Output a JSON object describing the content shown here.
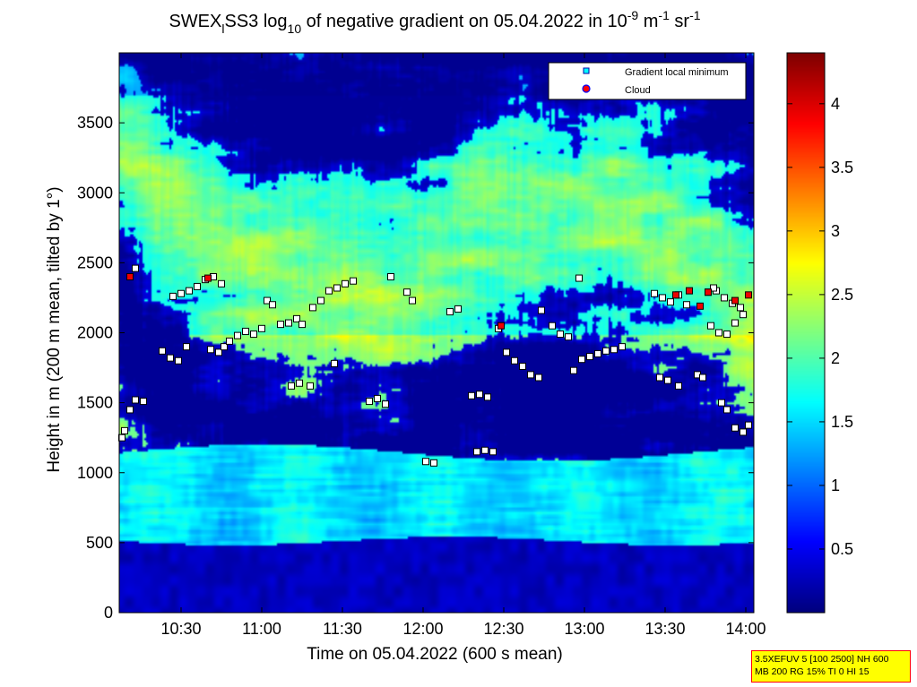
{
  "chart_data": {
    "type": "heatmap",
    "title_parts": {
      "a": "SWEX",
      "a_sub": "l",
      "b": "SS3 log",
      "b_sub": "10",
      "c": " of negative gradient on 05.04.2022 in 10",
      "c_sup": "-9",
      "d": " m",
      "d_sup": "-1",
      "e": " sr",
      "e_sup": "-1"
    },
    "xlabel": "Time on 05.04.2022 (600 s mean)",
    "ylabel": "Height in m (200 m mean, tilted by 1°)",
    "x_ticks": [
      "10:30",
      "11:00",
      "11:30",
      "12:00",
      "12:30",
      "13:00",
      "13:30",
      "14:00"
    ],
    "x_tick_minutes": [
      630,
      660,
      690,
      720,
      750,
      780,
      810,
      840
    ],
    "xlim_minutes": [
      607,
      843
    ],
    "y_ticks": [
      "0",
      "500",
      "1000",
      "1500",
      "2000",
      "2500",
      "3000",
      "3500"
    ],
    "y_tick_values": [
      0,
      500,
      1000,
      1500,
      2000,
      2500,
      3000,
      3500
    ],
    "ylim": [
      0,
      4000
    ],
    "colorbar": {
      "ticks": [
        "0.5",
        "1",
        "1.5",
        "2",
        "2.5",
        "3",
        "3.5",
        "4"
      ],
      "tick_values": [
        0.5,
        1,
        1.5,
        2,
        2.5,
        3,
        3.5,
        4
      ],
      "range": [
        0.0,
        4.4
      ],
      "colormap": "jet"
    },
    "legend": [
      {
        "label": "Gradient local minimum",
        "marker": "square",
        "color": "#00ffff"
      },
      {
        "label": "Cloud",
        "marker": "circle",
        "color": "#ff0000",
        "edge": "#0000ff"
      }
    ],
    "legend_position": "top-right",
    "layers": [
      {
        "name": "ground",
        "h0": 0,
        "h1": 520,
        "base": 0.15
      },
      {
        "name": "boundary",
        "h0": 520,
        "h1": 1150,
        "base": 1.55
      },
      {
        "name": "lower",
        "h0": 1150,
        "h1": 2000,
        "base": 1.4
      },
      {
        "name": "upper",
        "h0": 2000,
        "h1": 4000,
        "base": 1.0
      }
    ],
    "gradient_minima": [
      {
        "t": 608,
        "h": 1250
      },
      {
        "t": 609,
        "h": 1300
      },
      {
        "t": 611,
        "h": 1450
      },
      {
        "t": 613,
        "h": 1520
      },
      {
        "t": 616,
        "h": 1510
      },
      {
        "t": 611,
        "h": 2400
      },
      {
        "t": 613,
        "h": 2460
      },
      {
        "t": 623,
        "h": 1870
      },
      {
        "t": 626,
        "h": 1820
      },
      {
        "t": 629,
        "h": 1800
      },
      {
        "t": 632,
        "h": 1900
      },
      {
        "t": 627,
        "h": 2260
      },
      {
        "t": 630,
        "h": 2280
      },
      {
        "t": 633,
        "h": 2300
      },
      {
        "t": 636,
        "h": 2330
      },
      {
        "t": 639,
        "h": 2380
      },
      {
        "t": 641,
        "h": 1880
      },
      {
        "t": 644,
        "h": 1860
      },
      {
        "t": 646,
        "h": 1900
      },
      {
        "t": 642,
        "h": 2400
      },
      {
        "t": 645,
        "h": 2350
      },
      {
        "t": 648,
        "h": 1940
      },
      {
        "t": 651,
        "h": 1980
      },
      {
        "t": 654,
        "h": 2010
      },
      {
        "t": 657,
        "h": 1990
      },
      {
        "t": 660,
        "h": 2030
      },
      {
        "t": 662,
        "h": 2230
      },
      {
        "t": 664,
        "h": 2200
      },
      {
        "t": 667,
        "h": 2060
      },
      {
        "t": 670,
        "h": 2070
      },
      {
        "t": 673,
        "h": 2100
      },
      {
        "t": 675,
        "h": 2060
      },
      {
        "t": 671,
        "h": 1620
      },
      {
        "t": 674,
        "h": 1640
      },
      {
        "t": 678,
        "h": 1620
      },
      {
        "t": 679,
        "h": 2180
      },
      {
        "t": 682,
        "h": 2230
      },
      {
        "t": 685,
        "h": 2300
      },
      {
        "t": 688,
        "h": 2320
      },
      {
        "t": 691,
        "h": 2350
      },
      {
        "t": 694,
        "h": 2370
      },
      {
        "t": 687,
        "h": 1780
      },
      {
        "t": 700,
        "h": 1510
      },
      {
        "t": 703,
        "h": 1530
      },
      {
        "t": 706,
        "h": 1490
      },
      {
        "t": 708,
        "h": 2400
      },
      {
        "t": 714,
        "h": 2290
      },
      {
        "t": 716,
        "h": 2230
      },
      {
        "t": 721,
        "h": 1080
      },
      {
        "t": 724,
        "h": 1070
      },
      {
        "t": 730,
        "h": 2150
      },
      {
        "t": 733,
        "h": 2170
      },
      {
        "t": 738,
        "h": 1550
      },
      {
        "t": 741,
        "h": 1560
      },
      {
        "t": 744,
        "h": 1540
      },
      {
        "t": 740,
        "h": 1150
      },
      {
        "t": 743,
        "h": 1160
      },
      {
        "t": 746,
        "h": 1150
      },
      {
        "t": 748,
        "h": 2030
      },
      {
        "t": 751,
        "h": 1860
      },
      {
        "t": 754,
        "h": 1800
      },
      {
        "t": 757,
        "h": 1760
      },
      {
        "t": 760,
        "h": 1700
      },
      {
        "t": 763,
        "h": 1680
      },
      {
        "t": 764,
        "h": 2160
      },
      {
        "t": 768,
        "h": 2050
      },
      {
        "t": 771,
        "h": 1990
      },
      {
        "t": 774,
        "h": 1970
      },
      {
        "t": 776,
        "h": 1730
      },
      {
        "t": 779,
        "h": 1810
      },
      {
        "t": 782,
        "h": 1830
      },
      {
        "t": 785,
        "h": 1850
      },
      {
        "t": 788,
        "h": 1870
      },
      {
        "t": 791,
        "h": 1880
      },
      {
        "t": 794,
        "h": 1900
      },
      {
        "t": 778,
        "h": 2390
      },
      {
        "t": 806,
        "h": 2280
      },
      {
        "t": 809,
        "h": 2250
      },
      {
        "t": 812,
        "h": 2220
      },
      {
        "t": 815,
        "h": 2270
      },
      {
        "t": 818,
        "h": 2200
      },
      {
        "t": 808,
        "h": 1680
      },
      {
        "t": 811,
        "h": 1660
      },
      {
        "t": 815,
        "h": 1620
      },
      {
        "t": 822,
        "h": 1700
      },
      {
        "t": 824,
        "h": 1680
      },
      {
        "t": 826,
        "h": 2290
      },
      {
        "t": 829,
        "h": 2300
      },
      {
        "t": 832,
        "h": 2250
      },
      {
        "t": 835,
        "h": 2210
      },
      {
        "t": 838,
        "h": 2180
      },
      {
        "t": 827,
        "h": 2050
      },
      {
        "t": 830,
        "h": 2000
      },
      {
        "t": 833,
        "h": 1990
      },
      {
        "t": 836,
        "h": 2070
      },
      {
        "t": 839,
        "h": 2130
      },
      {
        "t": 831,
        "h": 1500
      },
      {
        "t": 833,
        "h": 1450
      },
      {
        "t": 836,
        "h": 1320
      },
      {
        "t": 839,
        "h": 1290
      },
      {
        "t": 841,
        "h": 1340
      },
      {
        "t": 828,
        "h": 2320
      }
    ],
    "clouds": [
      {
        "t": 611,
        "h": 2400
      },
      {
        "t": 640,
        "h": 2390
      },
      {
        "t": 749,
        "h": 2050
      },
      {
        "t": 814,
        "h": 2270
      },
      {
        "t": 823,
        "h": 2190
      },
      {
        "t": 826,
        "h": 2290
      },
      {
        "t": 836,
        "h": 2230
      },
      {
        "t": 841,
        "h": 2270
      },
      {
        "t": 819,
        "h": 2300
      }
    ]
  },
  "info_box": [
    "3.5XEFUV 5 [100 2500] NH 600",
    "MB 200 RG 15% TI 0 HI 15"
  ]
}
